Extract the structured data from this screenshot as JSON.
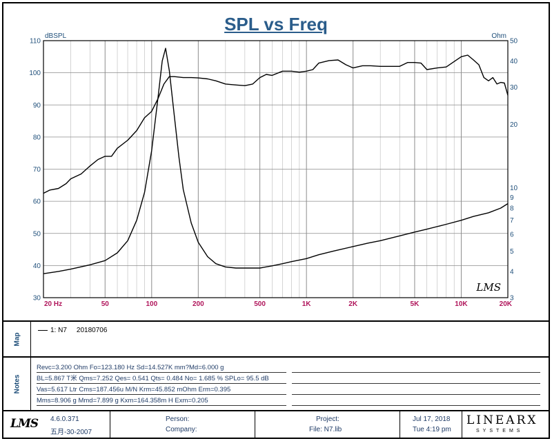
{
  "title": "SPL vs Freq",
  "chart_data": {
    "type": "line",
    "title": "SPL vs Freq",
    "x_scale": "log",
    "xlim": [
      20,
      20000
    ],
    "x_ticks": [
      20,
      50,
      100,
      200,
      500,
      1000,
      2000,
      5000,
      10000,
      20000
    ],
    "x_tick_labels": [
      "20  Hz",
      "50",
      "100",
      "200",
      "500",
      "1K",
      "2K",
      "5K",
      "10K",
      "20K"
    ],
    "ylabel": "dBSPL",
    "ylim": [
      30,
      110
    ],
    "y_ticks": [
      30,
      40,
      50,
      60,
      70,
      80,
      90,
      100,
      110
    ],
    "y2label": "Ohm",
    "y2_scale": "log",
    "y2lim": [
      3,
      50
    ],
    "y2_ticks": [
      3,
      4,
      5,
      6,
      7,
      8,
      9,
      10,
      20,
      30,
      40,
      50
    ],
    "grid": true,
    "watermark": "LMS",
    "series": [
      {
        "axis": "left",
        "x": [
          20,
          22,
          25,
          28,
          30,
          35,
          40,
          45,
          50,
          55,
          60,
          70,
          80,
          90,
          100,
          110,
          120,
          130,
          140,
          160,
          180,
          200,
          230,
          260,
          300,
          350,
          400,
          450,
          500,
          550,
          600,
          700,
          800,
          900,
          1000,
          1100,
          1200,
          1400,
          1600,
          1800,
          2000,
          2300,
          2600,
          3000,
          3500,
          4000,
          4500,
          5000,
          5500,
          6000,
          7000,
          8000,
          9000,
          10000,
          11000,
          12000,
          13000,
          14000,
          15000,
          16000,
          17000,
          18000,
          19000,
          20000
        ],
        "values": [
          62.5,
          63.5,
          64,
          65.5,
          67,
          68.5,
          71,
          73,
          74,
          74,
          76.5,
          79,
          82,
          86,
          88,
          92,
          96.5,
          98.8,
          98.8,
          98.5,
          98.5,
          98.4,
          98.1,
          97.5,
          96.5,
          96.2,
          96,
          96.5,
          98.5,
          99.5,
          99.2,
          100.5,
          100.5,
          100.2,
          100.5,
          101,
          103,
          103.8,
          104,
          102.5,
          101.5,
          102.2,
          102.2,
          102,
          102,
          102,
          103.2,
          103.2,
          103,
          101,
          101.5,
          101.8,
          103.5,
          105,
          105.5,
          104,
          102.5,
          98.5,
          97.5,
          98.5,
          96.5,
          97,
          96.8,
          93
        ]
      },
      {
        "axis": "right",
        "x": [
          20,
          25,
          30,
          40,
          50,
          60,
          70,
          80,
          90,
          100,
          110,
          117,
          123,
          130,
          140,
          150,
          160,
          180,
          200,
          230,
          260,
          300,
          350,
          400,
          450,
          500,
          600,
          700,
          800,
          1000,
          1200,
          1500,
          2000,
          2500,
          3000,
          4000,
          5000,
          6000,
          8000,
          10000,
          12000,
          15000,
          18000,
          20000
        ],
        "values": [
          3.9,
          4.0,
          4.1,
          4.3,
          4.5,
          4.9,
          5.6,
          7.0,
          9.5,
          15.0,
          27.0,
          40.0,
          46.0,
          36.0,
          22.0,
          14.0,
          9.8,
          6.8,
          5.5,
          4.7,
          4.35,
          4.2,
          4.15,
          4.15,
          4.15,
          4.15,
          4.25,
          4.35,
          4.45,
          4.6,
          4.8,
          5.0,
          5.25,
          5.45,
          5.6,
          5.9,
          6.15,
          6.35,
          6.7,
          7.0,
          7.3,
          7.6,
          8.0,
          8.4
        ]
      }
    ]
  },
  "map": {
    "label": "Map",
    "legend_name": "1: N7",
    "legend_date": "20180706"
  },
  "notes": {
    "label": "Notes",
    "lines": [
      "Revc=3.200 Ohm  Fo=123.180 Hz  Sd=14.527K mm?Md=6.000 g",
      "BL=5.867 T米  Qms=7.252  Qes= 0.541  Qts= 0.484  No= 1.685 %  SPLo= 95.5 dB",
      "Vas=5.617 Ltr  Cms=187.456u M/N  Krm=45.852 mOhm  Erm=0.395",
      "Mms=8.906 g  Mmd=7.899 g  Kxm=164.358m H  Exm=0.205"
    ]
  },
  "footer": {
    "logo": "LMS",
    "version": "4.6.0.371",
    "version_date": "五月-30-2007",
    "person_label": "Person:",
    "company_label": "Company:",
    "project_label": "Project:",
    "file_label": "File: N7.lib",
    "date": "Jul 17, 2018",
    "time": "Tue  4:19 pm",
    "brand": "LINEARX",
    "brand_sub": "SYSTEMS"
  }
}
